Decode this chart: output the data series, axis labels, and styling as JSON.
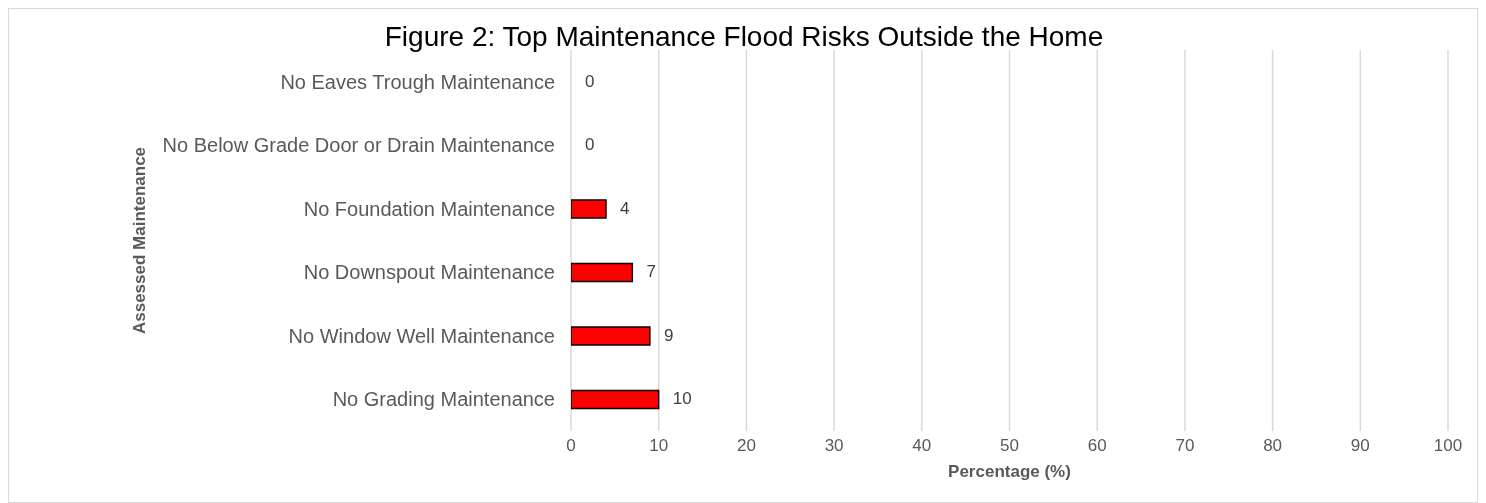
{
  "chart_data": {
    "type": "bar",
    "orientation": "horizontal",
    "title": "Figure 2: Top Maintenance Flood Risks Outside the Home",
    "xlabel": "Percentage (%)",
    "ylabel": "Assessed  Maintenance",
    "categories": [
      "No Eaves Trough Maintenance",
      "No Below Grade Door or Drain Maintenance",
      "No Foundation Maintenance",
      "No Downspout Maintenance",
      "No Window Well Maintenance",
      "No Grading Maintenance"
    ],
    "values": [
      0,
      0,
      4,
      7,
      9,
      10
    ],
    "color": "#ff0000",
    "xlim": [
      0,
      100
    ],
    "xticks": [
      0,
      10,
      20,
      30,
      40,
      50,
      60,
      70,
      80,
      90,
      100
    ],
    "grid": "x",
    "data_labels": true,
    "legend": false
  }
}
